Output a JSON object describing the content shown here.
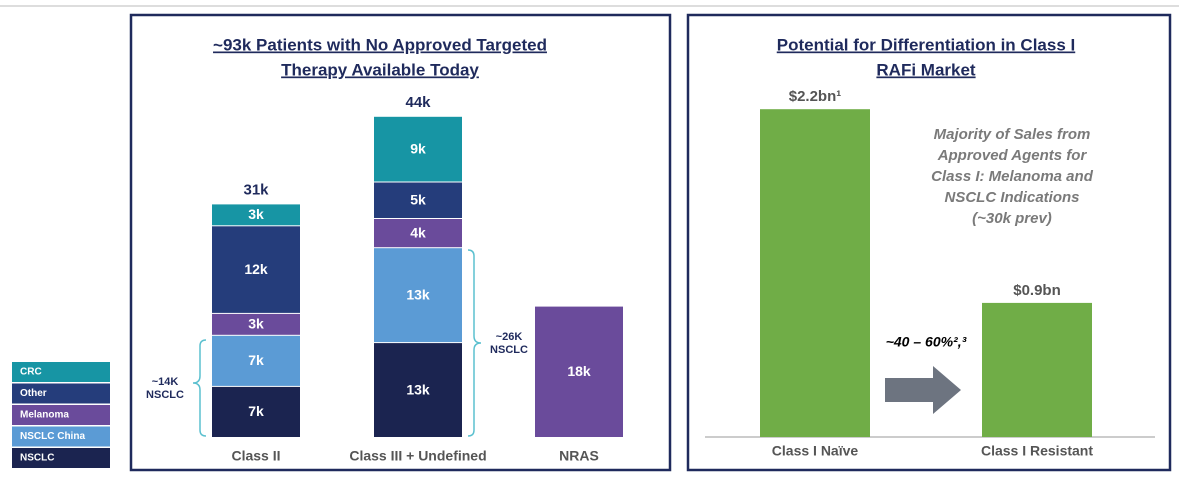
{
  "chart_data": [
    {
      "type": "stacked-bar",
      "title": [
        "~93k Patients with No Approved Targeted",
        "Therapy Available Today"
      ],
      "categories": [
        "Class II",
        "Class III + Undefined",
        "NRAS"
      ],
      "series": [
        {
          "name": "NSCLC",
          "color": "#1b2450",
          "values": [
            7,
            13,
            null
          ],
          "value_labels": [
            "7k",
            "13k",
            null
          ]
        },
        {
          "name": "NSCLC China",
          "color": "#5b9bd5",
          "values": [
            7,
            13,
            null
          ],
          "value_labels": [
            "7k",
            "13k",
            null
          ]
        },
        {
          "name": "Melanoma",
          "color": "#6a4b9b",
          "values": [
            3,
            4,
            18
          ],
          "value_labels": [
            "3k",
            "4k",
            "18k"
          ]
        },
        {
          "name": "Other",
          "color": "#253d7b",
          "values": [
            12,
            5,
            null
          ],
          "value_labels": [
            "12k",
            "5k",
            null
          ]
        },
        {
          "name": "CRC",
          "color": "#1795a4",
          "values": [
            3,
            9,
            null
          ],
          "value_labels": [
            "3k",
            "9k",
            null
          ]
        }
      ],
      "totals": [
        "31k",
        "44k"
      ],
      "annotations": [
        [
          "~14K",
          "NSCLC"
        ],
        [
          "~26K",
          "NSCLC"
        ]
      ]
    },
    {
      "type": "bar",
      "title": [
        "Potential for Differentiation in Class I",
        "RAFi Market"
      ],
      "categories": [
        "Class I Naïve",
        "Class I Resistant"
      ],
      "values": [
        2.2,
        0.9
      ],
      "value_labels": [
        "$2.2bn¹",
        "$0.9bn"
      ],
      "color": "#70ad47",
      "note": [
        "Majority of Sales from",
        "Approved Agents for",
        "Class I: Melanoma and",
        "NSCLC Indications",
        "(~30k prev)"
      ],
      "arrow_label": "~40 – 60%²,³"
    }
  ]
}
